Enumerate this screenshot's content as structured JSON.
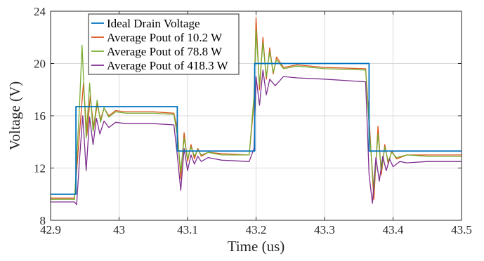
{
  "chart_data": {
    "type": "line",
    "title": "",
    "xlabel": "Time (us)",
    "ylabel": "Voltage (V)",
    "xlim": [
      42.9,
      43.5
    ],
    "ylim": [
      8,
      24
    ],
    "xticks": [
      42.9,
      43.0,
      43.1,
      43.2,
      43.3,
      43.4,
      43.5
    ],
    "xtick_labels": [
      "42.9",
      "43",
      "43.1",
      "43.2",
      "43.3",
      "43.4",
      "43.5"
    ],
    "yticks": [
      8,
      12,
      16,
      20,
      24
    ],
    "ytick_labels": [
      "8",
      "12",
      "16",
      "20",
      "24"
    ],
    "grid": true,
    "legend_position": "top-left",
    "series": [
      {
        "name": "Ideal Drain Voltage",
        "color": "#0072BD",
        "x": [
          42.9,
          42.937,
          42.937,
          43.085,
          43.085,
          43.198,
          43.198,
          43.365,
          43.365,
          43.5
        ],
        "y": [
          10.0,
          10.0,
          16.7,
          16.7,
          13.3,
          13.3,
          20.0,
          20.0,
          13.3,
          13.3
        ]
      },
      {
        "name": "Average Pout of 10.2 W",
        "color": "#D95319",
        "x": [
          42.9,
          42.935,
          42.942,
          42.948,
          42.953,
          42.958,
          42.963,
          42.968,
          42.973,
          42.978,
          42.985,
          42.995,
          43.01,
          43.05,
          43.08,
          43.085,
          43.09,
          43.095,
          43.1,
          43.105,
          43.11,
          43.115,
          43.12,
          43.13,
          43.15,
          43.19,
          43.197,
          43.2,
          43.205,
          43.21,
          43.215,
          43.22,
          43.225,
          43.23,
          43.24,
          43.26,
          43.3,
          43.36,
          43.366,
          43.372,
          43.378,
          43.383,
          43.388,
          43.393,
          43.398,
          43.405,
          43.42,
          43.45,
          43.5
        ],
        "y": [
          9.7,
          9.7,
          14.5,
          18.5,
          14.5,
          17.5,
          15.0,
          16.9,
          15.7,
          16.6,
          16.0,
          16.4,
          16.3,
          16.3,
          16.2,
          15.0,
          11.2,
          14.7,
          12.5,
          13.8,
          12.7,
          13.5,
          12.9,
          13.2,
          13.1,
          13.0,
          17.0,
          23.5,
          18.0,
          22.0,
          18.8,
          21.2,
          19.2,
          20.5,
          19.7,
          19.9,
          19.7,
          19.6,
          15.0,
          9.6,
          15.2,
          11.5,
          13.8,
          12.3,
          13.3,
          12.7,
          13.0,
          13.0,
          13.0
        ]
      },
      {
        "name": "Average Pout of 78.8 W",
        "color": "#77AC30",
        "x": [
          42.9,
          42.935,
          42.942,
          42.946,
          42.952,
          42.957,
          42.962,
          42.968,
          42.973,
          42.978,
          42.985,
          42.995,
          43.01,
          43.05,
          43.08,
          43.085,
          43.09,
          43.095,
          43.1,
          43.105,
          43.11,
          43.115,
          43.12,
          43.13,
          43.15,
          43.19,
          43.197,
          43.2,
          43.205,
          43.21,
          43.215,
          43.22,
          43.225,
          43.23,
          43.24,
          43.26,
          43.3,
          43.36,
          43.366,
          43.372,
          43.378,
          43.383,
          43.388,
          43.393,
          43.398,
          43.405,
          43.42,
          43.45,
          43.5
        ],
        "y": [
          9.6,
          9.6,
          16.5,
          21.4,
          14.3,
          18.5,
          14.8,
          17.2,
          15.5,
          16.6,
          15.9,
          16.3,
          16.2,
          16.2,
          16.1,
          14.5,
          11.7,
          14.3,
          12.7,
          13.6,
          12.9,
          13.4,
          13.0,
          13.2,
          13.0,
          13.0,
          17.5,
          22.6,
          18.4,
          21.6,
          19.0,
          20.9,
          19.3,
          20.3,
          19.6,
          19.8,
          19.6,
          19.5,
          14.5,
          10.3,
          14.6,
          11.8,
          13.6,
          12.5,
          13.2,
          12.8,
          13.0,
          12.9,
          12.9
        ]
      },
      {
        "name": "Average Pout of 418.3 W",
        "color": "#7E2F8E",
        "x": [
          42.9,
          42.935,
          42.938,
          42.942,
          42.947,
          42.952,
          42.957,
          42.962,
          42.967,
          42.972,
          42.978,
          42.985,
          42.995,
          43.01,
          43.05,
          43.08,
          43.085,
          43.09,
          43.095,
          43.1,
          43.105,
          43.11,
          43.115,
          43.12,
          43.13,
          43.15,
          43.19,
          43.197,
          43.2,
          43.205,
          43.21,
          43.215,
          43.22,
          43.228,
          43.24,
          43.26,
          43.3,
          43.36,
          43.365,
          43.37,
          43.375,
          43.38,
          43.385,
          43.39,
          43.395,
          43.4,
          43.41,
          43.42,
          43.45,
          43.5
        ],
        "y": [
          9.4,
          9.4,
          9.2,
          12.5,
          16.0,
          11.8,
          15.9,
          13.8,
          15.8,
          14.6,
          15.6,
          15.1,
          15.5,
          15.4,
          15.4,
          15.3,
          13.0,
          10.3,
          13.5,
          11.8,
          13.0,
          12.3,
          12.9,
          12.5,
          12.8,
          12.6,
          12.5,
          13.5,
          19.0,
          16.8,
          19.5,
          17.6,
          18.8,
          18.3,
          19.0,
          18.9,
          18.8,
          18.6,
          11.5,
          9.3,
          12.8,
          11.0,
          12.9,
          11.8,
          12.7,
          12.1,
          12.5,
          12.4,
          12.5,
          12.5
        ]
      }
    ]
  }
}
